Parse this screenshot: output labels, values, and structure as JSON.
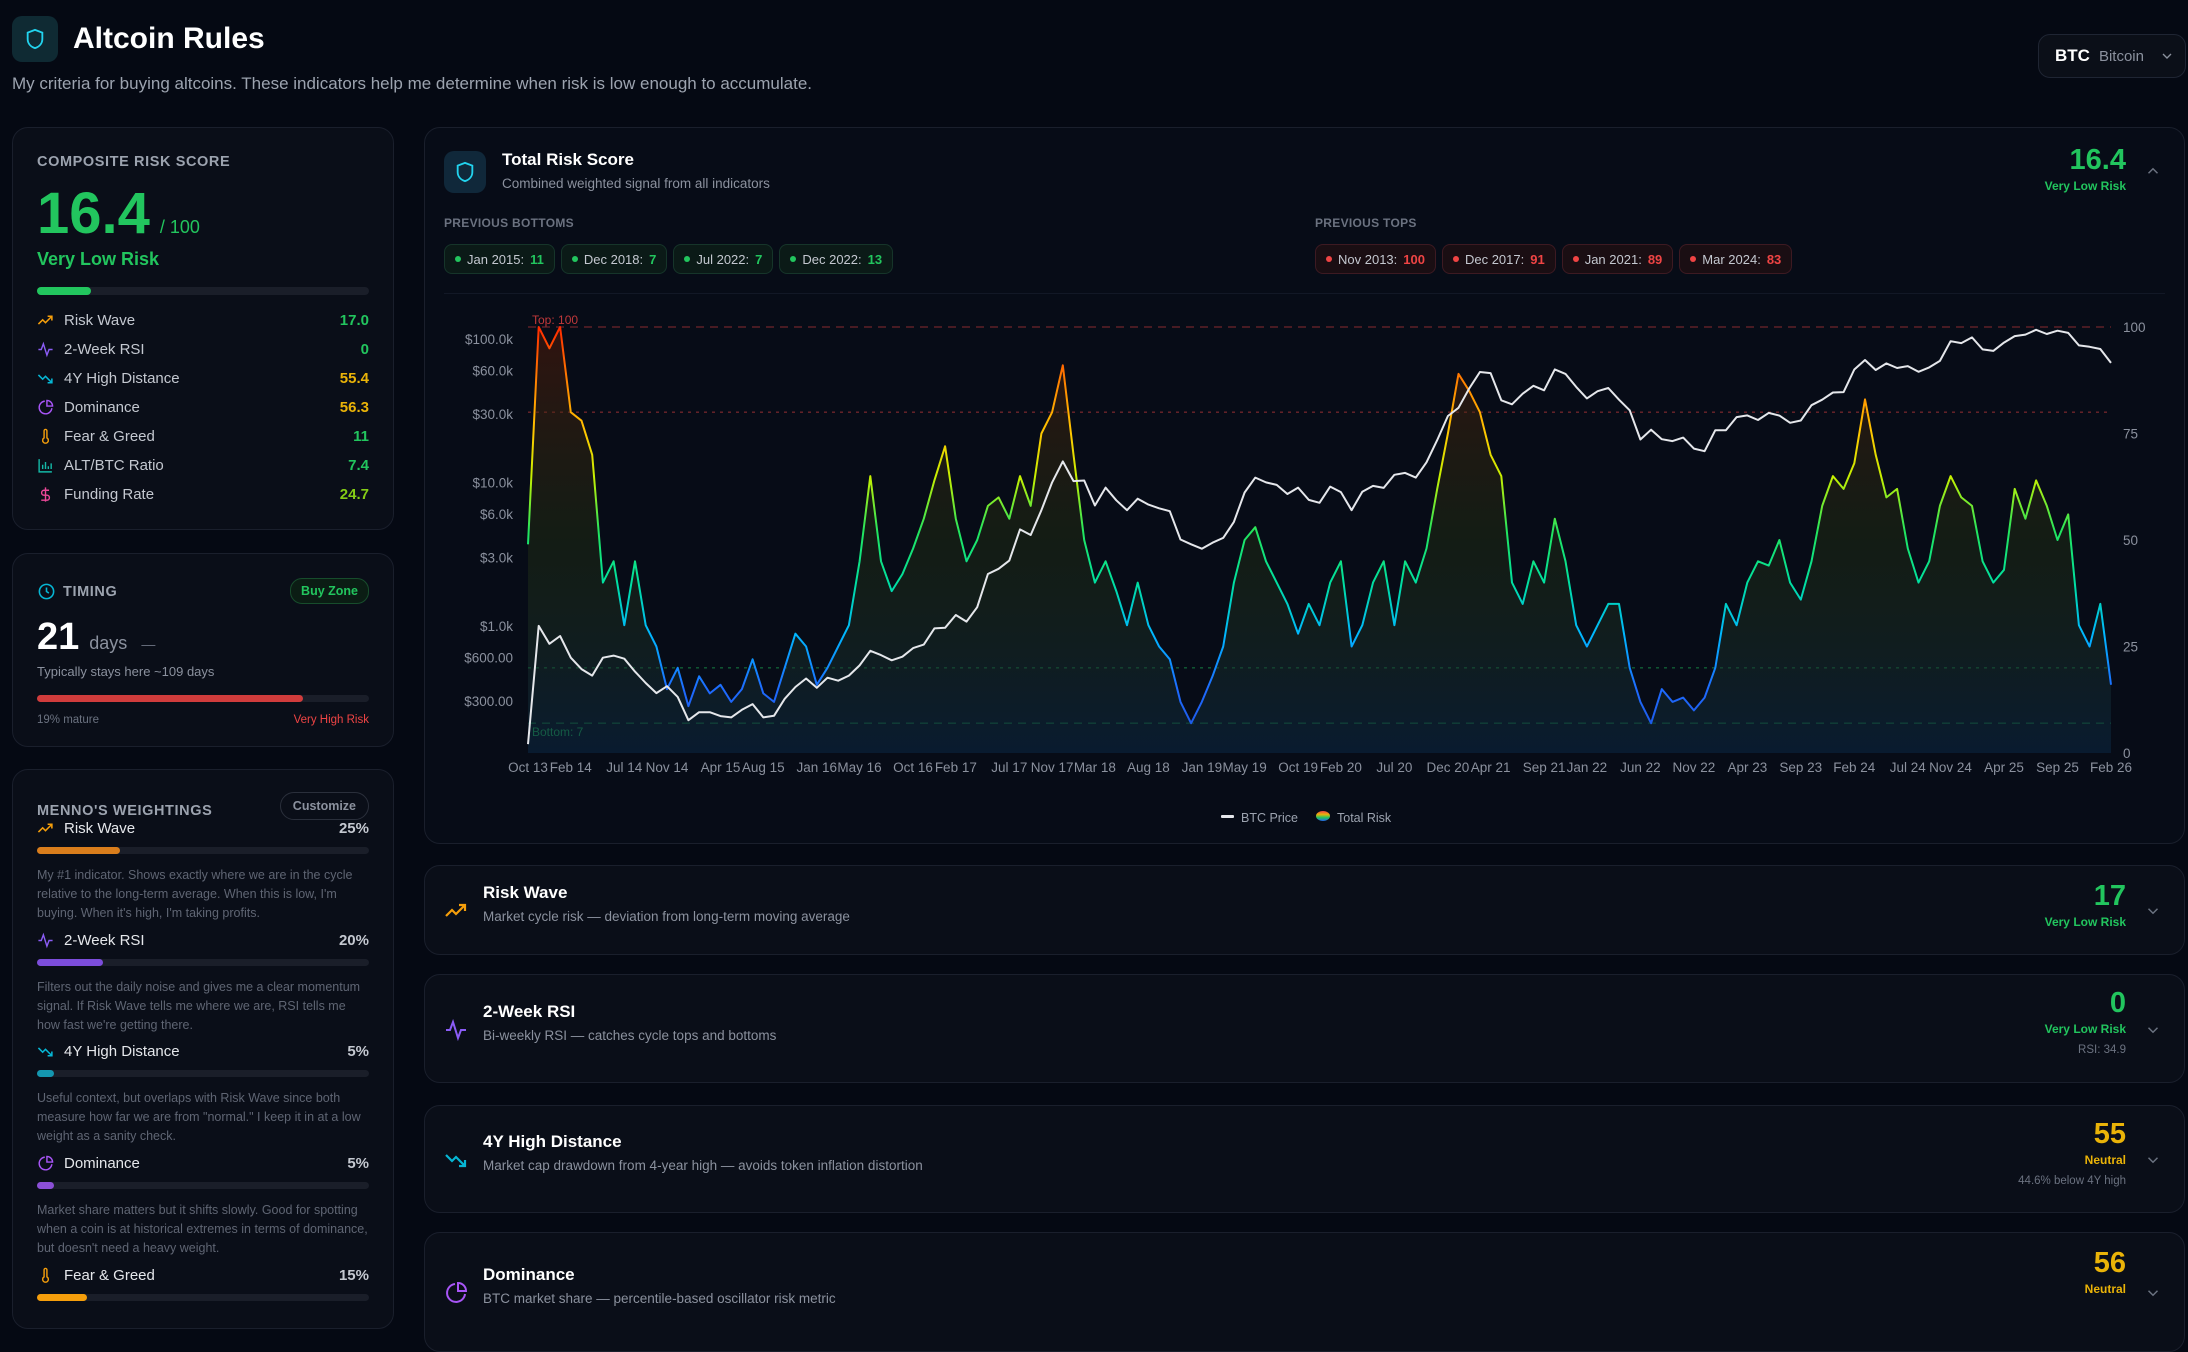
{
  "header": {
    "title": "Altcoin Rules",
    "subtitle": "My criteria for buying altcoins. These indicators help me determine when risk is low enough to accumulate.",
    "coin_symbol": "BTC",
    "coin_name": "Bitcoin"
  },
  "colors": {
    "green": "#22c55e",
    "yellow": "#eab308",
    "red": "#ef4444",
    "lime": "#84cc16"
  },
  "composite": {
    "label": "COMPOSITE RISK SCORE",
    "score": "16.4",
    "max": "/ 100",
    "rating": "Very Low Risk",
    "progress": 16.4,
    "items": [
      {
        "name": "Risk Wave",
        "value": "17.0",
        "icon": "trending-up-icon",
        "color": "#22c55e"
      },
      {
        "name": "2-Week RSI",
        "value": "0",
        "icon": "activity-icon",
        "color": "#22c55e"
      },
      {
        "name": "4Y High Distance",
        "value": "55.4",
        "icon": "trending-down-icon",
        "color": "#eab308"
      },
      {
        "name": "Dominance",
        "value": "56.3",
        "icon": "pie-chart-icon",
        "color": "#eab308"
      },
      {
        "name": "Fear & Greed",
        "value": "11",
        "icon": "thermometer-icon",
        "color": "#22c55e"
      },
      {
        "name": "ALT/BTC Ratio",
        "value": "7.4",
        "icon": "bar-chart-icon",
        "color": "#22c55e"
      },
      {
        "name": "Funding Rate",
        "value": "24.7",
        "icon": "dollar-icon",
        "color": "#84cc16"
      }
    ]
  },
  "timing": {
    "label": "TIMING",
    "badge": "Buy Zone",
    "days": "21",
    "days_unit": "days",
    "dash": "—",
    "typical": "Typically stays here ~109 days",
    "progress": 80,
    "mature": "19% mature",
    "risk": "Very High Risk"
  },
  "weightings": {
    "label": "MENNO'S WEIGHTINGS",
    "customize": "Customize",
    "items": [
      {
        "name": "Risk Wave",
        "pct": "25%",
        "weight": 25,
        "color": "#d97d1c",
        "desc": "My #1 indicator. Shows exactly where we are in the cycle relative to the long-term average. When this is low, I'm buying. When it's high, I'm taking profits."
      },
      {
        "name": "2-Week RSI",
        "pct": "20%",
        "weight": 20,
        "color": "#7c4ddb",
        "desc": "Filters out the daily noise and gives me a clear momentum signal. If Risk Wave tells me where we are, RSI tells me how fast we're getting there."
      },
      {
        "name": "4Y High Distance",
        "pct": "5%",
        "weight": 5,
        "color": "#1497b0",
        "desc": "Useful context, but overlaps with Risk Wave since both measure how far we are from \"normal.\" I keep it in at a low weight as a sanity check."
      },
      {
        "name": "Dominance",
        "pct": "5%",
        "weight": 5,
        "color": "#8b4fd6",
        "desc": "Market share matters but it shifts slowly. Good for spotting when a coin is at historical extremes in terms of dominance, but doesn't need a heavy weight."
      },
      {
        "name": "Fear & Greed",
        "pct": "15%",
        "weight": 15,
        "color": "#f59e0b",
        "desc": ""
      }
    ]
  },
  "total": {
    "title": "Total Risk Score",
    "subtitle": "Combined weighted signal from all indicators",
    "score": "16.4",
    "rating": "Very Low Risk",
    "bottoms_label": "PREVIOUS BOTTOMS",
    "tops_label": "PREVIOUS TOPS",
    "bottoms": [
      {
        "date": "Jan 2015:",
        "value": "11"
      },
      {
        "date": "Dec 2018:",
        "value": "7"
      },
      {
        "date": "Jul 2022:",
        "value": "7"
      },
      {
        "date": "Dec 2022:",
        "value": "13"
      }
    ],
    "tops": [
      {
        "date": "Nov 2013:",
        "value": "100"
      },
      {
        "date": "Dec 2017:",
        "value": "91"
      },
      {
        "date": "Jan 2021:",
        "value": "89"
      },
      {
        "date": "Mar 2024:",
        "value": "83"
      }
    ]
  },
  "chart_data": {
    "type": "line",
    "x_ticks": [
      "Oct 13",
      "Feb 14",
      "Jul 14",
      "Nov 14",
      "Apr 15",
      "Aug 15",
      "Jan 16",
      "May 16",
      "Oct 16",
      "Feb 17",
      "Jul 17",
      "Nov 17",
      "Mar 18",
      "Aug 18",
      "Jan 19",
      "May 19",
      "Oct 19",
      "Feb 20",
      "Jul 20",
      "Dec 20",
      "Apr 21",
      "Sep 21",
      "Jan 22",
      "Jun 22",
      "Nov 22",
      "Apr 23",
      "Sep 23",
      "Feb 24",
      "Jul 24",
      "Nov 24",
      "Apr 25",
      "Sep 25",
      "Feb 26"
    ],
    "y_left": {
      "scale": "log",
      "ticks": [
        "$100.0k",
        "$60.0k",
        "$30.0k",
        "$10.0k",
        "$6.0k",
        "$3.0k",
        "$1.0k",
        "$600.00",
        "$300.00"
      ],
      "tick_values": [
        100000,
        60000,
        30000,
        10000,
        6000,
        3000,
        1000,
        600,
        300
      ],
      "range": [
        130,
        121000
      ]
    },
    "y_right": {
      "ticks": [
        "100",
        "75",
        "50",
        "25",
        "0"
      ],
      "range": [
        0,
        100
      ]
    },
    "reference_lines": [
      {
        "value": 100,
        "label": "Top: 100",
        "color": "#ef4444"
      },
      {
        "value": 80,
        "label": "",
        "color": "#ef4444"
      },
      {
        "value": 20,
        "label": "",
        "color": "#22c55e"
      },
      {
        "value": 7,
        "label": "Bottom: 7",
        "color": "#22c55e"
      }
    ],
    "legend": {
      "position": "bottom-center",
      "items": [
        "BTC Price",
        "Total Risk"
      ]
    },
    "dates": [
      "2013-10",
      "2013-11",
      "2013-12",
      "2014-01",
      "2014-02",
      "2014-03",
      "2014-04",
      "2014-05",
      "2014-06",
      "2014-07",
      "2014-08",
      "2014-09",
      "2014-10",
      "2014-11",
      "2014-12",
      "2015-01",
      "2015-02",
      "2015-03",
      "2015-04",
      "2015-05",
      "2015-06",
      "2015-07",
      "2015-08",
      "2015-09",
      "2015-10",
      "2015-11",
      "2015-12",
      "2016-01",
      "2016-02",
      "2016-03",
      "2016-04",
      "2016-05",
      "2016-06",
      "2016-07",
      "2016-08",
      "2016-09",
      "2016-10",
      "2016-11",
      "2016-12",
      "2017-01",
      "2017-02",
      "2017-03",
      "2017-04",
      "2017-05",
      "2017-06",
      "2017-07",
      "2017-08",
      "2017-09",
      "2017-10",
      "2017-11",
      "2017-12",
      "2018-01",
      "2018-02",
      "2018-03",
      "2018-04",
      "2018-05",
      "2018-06",
      "2018-07",
      "2018-08",
      "2018-09",
      "2018-10",
      "2018-11",
      "2018-12",
      "2019-01",
      "2019-02",
      "2019-03",
      "2019-04",
      "2019-05",
      "2019-06",
      "2019-07",
      "2019-08",
      "2019-09",
      "2019-10",
      "2019-11",
      "2019-12",
      "2020-01",
      "2020-02",
      "2020-03",
      "2020-04",
      "2020-05",
      "2020-06",
      "2020-07",
      "2020-08",
      "2020-09",
      "2020-10",
      "2020-11",
      "2020-12",
      "2021-01",
      "2021-02",
      "2021-03",
      "2021-04",
      "2021-05",
      "2021-06",
      "2021-07",
      "2021-08",
      "2021-09",
      "2021-10",
      "2021-11",
      "2021-12",
      "2022-01",
      "2022-02",
      "2022-03",
      "2022-04",
      "2022-05",
      "2022-06",
      "2022-07",
      "2022-08",
      "2022-09",
      "2022-10",
      "2022-11",
      "2022-12",
      "2023-01",
      "2023-02",
      "2023-03",
      "2023-04",
      "2023-05",
      "2023-06",
      "2023-07",
      "2023-08",
      "2023-09",
      "2023-10",
      "2023-11",
      "2023-12",
      "2024-01",
      "2024-02",
      "2024-03",
      "2024-04",
      "2024-05",
      "2024-06",
      "2024-07",
      "2024-08",
      "2024-09",
      "2024-10",
      "2024-11",
      "2024-12",
      "2025-01",
      "2025-02",
      "2025-03",
      "2025-04",
      "2025-05",
      "2025-06",
      "2025-07",
      "2025-08",
      "2025-09",
      "2025-10",
      "2025-11",
      "2025-12",
      "2026-01",
      "2026-02"
    ],
    "series": [
      {
        "name": "BTC Price",
        "axis": "left",
        "color": "#e5e7eb",
        "values": [
          150,
          1000,
          750,
          850,
          600,
          500,
          450,
          600,
          620,
          590,
          480,
          400,
          340,
          380,
          320,
          220,
          250,
          250,
          235,
          230,
          260,
          285,
          230,
          236,
          310,
          375,
          430,
          370,
          435,
          415,
          450,
          530,
          670,
          625,
          575,
          610,
          700,
          740,
          960,
          970,
          1190,
          1070,
          1350,
          2300,
          2500,
          2850,
          4700,
          4300,
          6400,
          10000,
          14000,
          10200,
          10300,
          6900,
          9200,
          7500,
          6400,
          7700,
          7000,
          6600,
          6300,
          4000,
          3700,
          3450,
          3800,
          4100,
          5300,
          8500,
          10800,
          10000,
          9600,
          8300,
          9200,
          7550,
          7200,
          9350,
          8550,
          6400,
          8600,
          9450,
          9150,
          11300,
          11650,
          10800,
          13800,
          19700,
          29000,
          33100,
          45100,
          58800,
          57700,
          37300,
          35000,
          41500,
          47100,
          43800,
          61300,
          57000,
          46300,
          38500,
          43200,
          45500,
          37700,
          31800,
          19900,
          23300,
          20000,
          19400,
          20500,
          17200,
          16500,
          23100,
          23100,
          28500,
          29300,
          27200,
          30500,
          29200,
          26000,
          27000,
          34500,
          37700,
          42300,
          42600,
          61200,
          71300,
          60700,
          67500,
          62700,
          64600,
          59000,
          63300,
          70200,
          96400,
          93400,
          102400,
          84400,
          82500,
          94200,
          104600,
          107100,
          115700,
          108200,
          114000,
          110000,
          90000,
          88000,
          85000,
          68000
        ]
      },
      {
        "name": "Total Risk",
        "axis": "right",
        "values": [
          49,
          100,
          95,
          100,
          80,
          78,
          70,
          40,
          45,
          30,
          45,
          30,
          25,
          15,
          20,
          11,
          18,
          14,
          16,
          12,
          15,
          22,
          14,
          12,
          20,
          28,
          25,
          16,
          20,
          25,
          30,
          45,
          65,
          45,
          38,
          42,
          48,
          55,
          64,
          72,
          55,
          45,
          50,
          58,
          60,
          55,
          65,
          58,
          75,
          80,
          91,
          70,
          50,
          40,
          45,
          38,
          30,
          40,
          30,
          25,
          22,
          12,
          7,
          12,
          18,
          25,
          40,
          50,
          53,
          45,
          40,
          35,
          28,
          35,
          30,
          40,
          45,
          25,
          30,
          40,
          45,
          30,
          45,
          40,
          48,
          62,
          75,
          89,
          85,
          80,
          70,
          65,
          40,
          35,
          45,
          40,
          55,
          45,
          30,
          25,
          30,
          35,
          35,
          20,
          12,
          7,
          15,
          12,
          13,
          10,
          13,
          20,
          35,
          30,
          40,
          45,
          44,
          50,
          40,
          36,
          45,
          58,
          65,
          62,
          68,
          83,
          70,
          60,
          62,
          48,
          40,
          45,
          58,
          65,
          60,
          58,
          45,
          40,
          43,
          62,
          55,
          64,
          58,
          50,
          56,
          30,
          25,
          35,
          16
        ]
      }
    ]
  },
  "indicators": [
    {
      "title": "Risk Wave",
      "desc": "Market cycle risk — deviation from long-term moving average",
      "value": "17",
      "rating": "Very Low Risk",
      "sub": "",
      "color": "#22c55e",
      "icon": "trending-up-icon"
    },
    {
      "title": "2-Week RSI",
      "desc": "Bi-weekly RSI — catches cycle tops and bottoms",
      "value": "0",
      "rating": "Very Low Risk",
      "sub": "RSI: 34.9",
      "color": "#22c55e",
      "icon": "activity-icon"
    },
    {
      "title": "4Y High Distance",
      "desc": "Market cap drawdown from 4-year high — avoids token inflation distortion",
      "value": "55",
      "rating": "Neutral",
      "sub": "44.6% below 4Y high",
      "color": "#eab308",
      "icon": "trending-down-icon"
    },
    {
      "title": "Dominance",
      "desc": "BTC market share — percentile-based oscillator risk metric",
      "value": "56",
      "rating": "Neutral",
      "sub": "",
      "color": "#eab308",
      "icon": "pie-chart-icon"
    }
  ]
}
